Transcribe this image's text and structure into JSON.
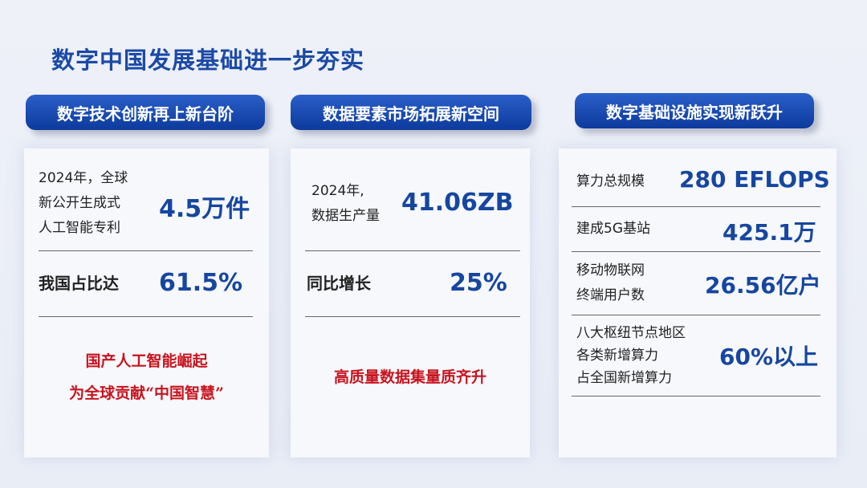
{
  "title": "数字中国发展基础进一步夯实",
  "columns": [
    {
      "header": "数字技术创新再上新台阶",
      "rows": [
        {
          "label": [
            "2024年，全球",
            "新公开生成式",
            "人工智能专利"
          ],
          "value": "4.5万件"
        },
        {
          "label": [
            "我国占比达"
          ],
          "value": "61.5%"
        }
      ],
      "highlight": [
        "国产人工智能崛起",
        "为全球贡献“中国智慧”"
      ]
    },
    {
      "header": "数据要素市场拓展新空间",
      "rows": [
        {
          "label": [
            "2024年,",
            "数据生产量"
          ],
          "value": "41.06ZB"
        },
        {
          "label": [
            "同比增长"
          ],
          "value": "25%"
        }
      ],
      "highlight": [
        "高质量数据集量质齐升"
      ]
    },
    {
      "header": "数字基础设施实现新跃升",
      "rows": [
        {
          "label": [
            "算力总规模"
          ],
          "value": "280 EFLOPS"
        },
        {
          "label": [
            "建成5G基站"
          ],
          "value": "425.1万"
        },
        {
          "label": [
            "移动物联网",
            "终端用户数"
          ],
          "value": "26.56亿户"
        },
        {
          "label": [
            "八大枢纽节点地区",
            "各类新增算力",
            "占全国新增算力"
          ],
          "value": "60%以上"
        }
      ]
    }
  ],
  "colors": {
    "title": "#1b4aa6",
    "pill": "#0d3a9c",
    "value": "#1646a0",
    "highlight": "#c8141e"
  }
}
